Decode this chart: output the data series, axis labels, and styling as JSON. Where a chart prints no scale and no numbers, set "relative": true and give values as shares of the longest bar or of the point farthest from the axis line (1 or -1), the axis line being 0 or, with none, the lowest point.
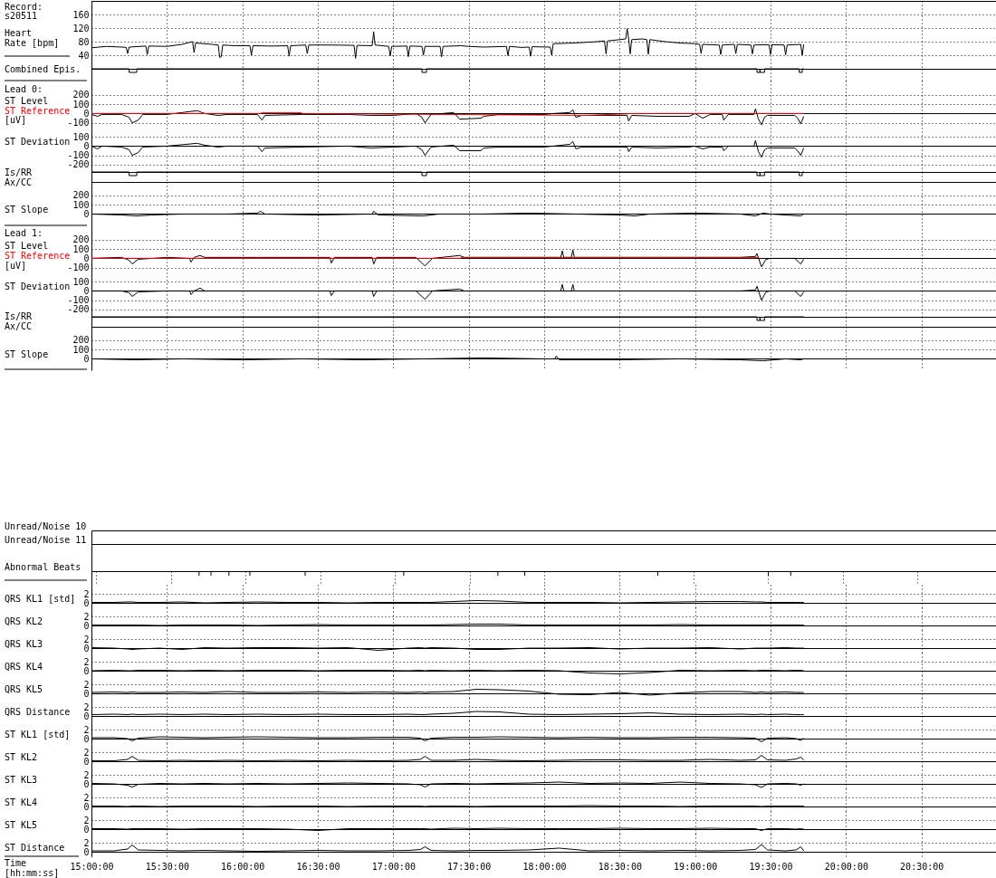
{
  "chart_data": [
    {
      "type": "line",
      "title": "Record: s20511",
      "ylabel": "Heart Rate [bpm]",
      "color": "#000000",
      "x": [
        15,
        15.1,
        15.2,
        15.23,
        15.24,
        15.25,
        15.36,
        15.37,
        15.38,
        15.5,
        15.6,
        15.67,
        15.68,
        15.69,
        15.8,
        15.84,
        15.85,
        15.86,
        15.87,
        15.95,
        16.05,
        16.06,
        16.07,
        16.2,
        16.3,
        16.31,
        16.32,
        16.42,
        16.43,
        16.44,
        16.6,
        16.74,
        16.75,
        16.76,
        16.86,
        16.87,
        16.88,
        16.97,
        16.98,
        16.99,
        17.09,
        17.1,
        17.11,
        17.19,
        17.2,
        17.21,
        17.31,
        17.32,
        17.33,
        17.45,
        17.5,
        17.6,
        17.75,
        17.76,
        17.77,
        17.85,
        17.9,
        17.91,
        17.92,
        18.04,
        18.05,
        18.06,
        18.2,
        18.35,
        18.4,
        18.41,
        18.42,
        18.5,
        18.54,
        18.55,
        18.56,
        18.57,
        18.58,
        18.65,
        18.68,
        18.69,
        18.7,
        18.8,
        18.9,
        19,
        19.03,
        19.04,
        19.05,
        19.16,
        19.17,
        19.18,
        19.26,
        19.27,
        19.28,
        19.37,
        19.38,
        19.39,
        19.49,
        19.5,
        19.51,
        19.59,
        19.6,
        19.61,
        19.7,
        19.71,
        19.72
      ],
      "values": [
        62,
        66,
        64,
        63,
        45,
        64,
        67,
        42,
        67,
        66,
        72,
        80,
        48,
        76,
        72,
        70,
        33,
        36,
        70,
        68,
        68,
        40,
        68,
        67,
        68,
        37,
        68,
        70,
        45,
        70,
        70,
        69,
        31,
        69,
        68,
        109,
        70,
        66,
        38,
        66,
        67,
        36,
        67,
        66,
        40,
        66,
        66,
        35,
        66,
        68,
        66,
        64,
        66,
        39,
        66,
        63,
        64,
        37,
        65,
        64,
        40,
        74,
        76,
        80,
        82,
        44,
        82,
        86,
        88,
        118,
        88,
        44,
        86,
        88,
        86,
        43,
        86,
        80,
        76,
        74,
        72,
        45,
        72,
        70,
        42,
        70,
        72,
        45,
        72,
        70,
        44,
        70,
        71,
        42,
        71,
        70,
        41,
        70,
        72,
        40,
        72
      ],
      "xlim": [
        15,
        21
      ],
      "xticks": [
        15,
        15.5,
        16,
        16.5,
        17,
        17.5,
        18,
        18.5,
        19,
        19.5,
        20,
        20.5
      ],
      "ylim": [
        0,
        200
      ],
      "yticks": [
        40,
        80,
        120,
        160
      ],
      "grid": true,
      "tick_labels": "y"
    },
    {
      "type": "step",
      "ylabel": "Combined Epis.",
      "relative": true,
      "color": "#000000",
      "x": [
        15,
        15.25,
        15.3,
        17.19,
        17.22,
        19.41,
        19.43,
        19.43,
        19.46,
        19.69,
        19.71,
        19.72
      ],
      "values": [
        0,
        -1,
        0,
        -1,
        0,
        -1,
        0,
        -1,
        0,
        -1,
        0,
        0
      ],
      "xlim": [
        15,
        21
      ],
      "xticks": [
        15,
        15.5,
        16,
        16.5,
        17,
        17.5,
        18,
        18.5,
        19,
        19.5,
        20,
        20.5
      ],
      "grid": "x",
      "tick_labels": false
    },
    {
      "type": "line",
      "title": "Lead 0:",
      "ylabel": "[uV]",
      "legend": "left",
      "series": [
        {
          "name": "ST Level",
          "color": "#000000",
          "x": [
            15,
            15.04,
            15.07,
            15.2,
            15.25,
            15.27,
            15.31,
            15.34,
            15.5,
            15.7,
            15.75,
            15.84,
            15.9,
            16.1,
            16.13,
            16.15,
            16.4,
            16.7,
            16.85,
            17,
            17.15,
            17.19,
            17.21,
            17.25,
            17.4,
            17.44,
            17.58,
            17.6,
            17.7,
            18,
            18.06,
            18.17,
            18.19,
            18.21,
            18.25,
            18.55,
            18.56,
            18.58,
            18.75,
            18.96,
            19,
            19.05,
            19.1,
            19.18,
            19.19,
            19.22,
            19.39,
            19.4,
            19.42,
            19.44,
            19.46,
            19.48,
            19.66,
            19.68,
            19.7,
            19.72
          ],
          "values": [
            -10,
            -30,
            -10,
            -10,
            -40,
            -100,
            -70,
            -10,
            -10,
            30,
            0,
            -20,
            -10,
            -10,
            -70,
            -20,
            -10,
            -10,
            -20,
            -20,
            0,
            -40,
            -100,
            -10,
            10,
            -60,
            -50,
            -30,
            -10,
            -10,
            0,
            10,
            40,
            -40,
            -20,
            -20,
            -80,
            -20,
            -30,
            -30,
            0,
            -50,
            -10,
            -10,
            -70,
            -10,
            -10,
            50,
            -60,
            -120,
            -40,
            -20,
            -20,
            -50,
            -110,
            -30
          ]
        },
        {
          "name": "ST Reference",
          "color": "#ff0000",
          "x": [
            15,
            16.12,
            16.13,
            16.38,
            16.4,
            18.27,
            18.6,
            19.72
          ],
          "values": [
            0,
            0,
            10,
            10,
            0,
            -20,
            0,
            0
          ]
        }
      ],
      "xlim": [
        15,
        21
      ],
      "xticks": [
        15,
        15.5,
        16,
        16.5,
        17,
        17.5,
        18,
        18.5,
        19,
        19.5,
        20,
        20.5
      ],
      "ylim": [
        -150,
        350
      ],
      "yticks": [
        -100,
        0,
        100,
        200
      ],
      "grid": true,
      "tick_labels": "y"
    },
    {
      "type": "line",
      "ylabel": "ST Deviation",
      "color": "#000000",
      "x": [
        15,
        15.04,
        15.07,
        15.2,
        15.25,
        15.27,
        15.31,
        15.34,
        15.5,
        15.7,
        15.75,
        15.84,
        15.9,
        16.1,
        16.13,
        16.15,
        16.4,
        16.7,
        16.85,
        17,
        17.15,
        17.19,
        17.21,
        17.25,
        17.4,
        17.44,
        17.58,
        17.6,
        17.7,
        18,
        18.06,
        18.17,
        18.19,
        18.21,
        18.25,
        18.55,
        18.56,
        18.58,
        18.75,
        18.96,
        19,
        19.05,
        19.1,
        19.18,
        19.19,
        19.22,
        19.39,
        19.4,
        19.42,
        19.44,
        19.46,
        19.48,
        19.66,
        19.68,
        19.7,
        19.72
      ],
      "values": [
        0,
        -30,
        0,
        -10,
        -40,
        -100,
        -70,
        -10,
        0,
        30,
        10,
        -10,
        0,
        0,
        -60,
        -20,
        -10,
        0,
        -20,
        -10,
        0,
        -40,
        -100,
        -10,
        10,
        -50,
        -50,
        -20,
        -10,
        -10,
        0,
        20,
        50,
        -30,
        -10,
        -10,
        -60,
        -10,
        -20,
        -10,
        0,
        -30,
        -10,
        -10,
        -50,
        0,
        0,
        60,
        -60,
        -120,
        -40,
        -20,
        -20,
        -50,
        -100,
        -20
      ],
      "xlim": [
        15,
        21
      ],
      "xticks": [
        15,
        15.5,
        16,
        16.5,
        17,
        17.5,
        18,
        18.5,
        19,
        19.5,
        20,
        20.5
      ],
      "ylim": [
        -280,
        200
      ],
      "yticks": [
        -200,
        -100,
        0,
        100
      ],
      "grid": true,
      "tick_labels": "y"
    },
    {
      "type": "step",
      "ylabel": "Is/RR Ax/CC",
      "relative": true,
      "color": "#000000",
      "x": [
        15,
        15.25,
        15.3,
        17.19,
        17.22,
        19.41,
        19.43,
        19.43,
        19.46,
        19.69,
        19.71,
        19.72
      ],
      "values": [
        0,
        -1,
        0,
        -1,
        0,
        -1,
        0,
        -1,
        0,
        -1,
        0,
        0
      ],
      "xlim": [
        15,
        21
      ],
      "xticks": [
        15,
        15.5,
        16,
        16.5,
        17,
        17.5,
        18,
        18.5,
        19,
        19.5,
        20,
        20.5
      ],
      "grid": "x",
      "tick_labels": false
    },
    {
      "type": "line",
      "ylabel": "ST Slope",
      "color": "#000000",
      "x": [
        15,
        15.2,
        15.3,
        15.4,
        15.6,
        15.9,
        16.1,
        16.12,
        16.15,
        16.5,
        16.86,
        16.87,
        16.9,
        17.2,
        17.3,
        17.6,
        17.9,
        18.2,
        18.5,
        18.6,
        18.7,
        19,
        19.3,
        19.4,
        19.45,
        19.5,
        19.7,
        19.72
      ],
      "values": [
        0,
        -10,
        -20,
        -10,
        0,
        0,
        10,
        30,
        0,
        -10,
        0,
        30,
        -10,
        -20,
        0,
        0,
        10,
        0,
        -10,
        -20,
        0,
        10,
        0,
        -20,
        10,
        0,
        -20,
        0
      ],
      "xlim": [
        15,
        21
      ],
      "xticks": [
        15,
        15.5,
        16,
        16.5,
        17,
        17.5,
        18,
        18.5,
        19,
        19.5,
        20,
        20.5
      ],
      "ylim": [
        -120,
        340
      ],
      "yticks": [
        0,
        100,
        200
      ],
      "grid": true,
      "tick_labels": "y"
    },
    {
      "type": "line",
      "title": "Lead 1:",
      "ylabel": "[uV]",
      "legend": "left",
      "series": [
        {
          "name": "ST Level",
          "color": "#000000",
          "x": [
            15,
            15.2,
            15.25,
            15.27,
            15.31,
            15.5,
            15.65,
            15.66,
            15.68,
            15.72,
            15.75,
            16.1,
            16.58,
            16.59,
            16.61,
            16.86,
            16.87,
            16.89,
            17.15,
            17.21,
            17.26,
            17.44,
            17.47,
            17.8,
            18.1,
            18.11,
            18.12,
            18.13,
            18.18,
            18.19,
            18.2,
            18.6,
            19,
            19.2,
            19.3,
            19.4,
            19.41,
            19.44,
            19.47,
            19.5,
            19.66,
            19.7,
            19.72
          ],
          "values": [
            0,
            10,
            -20,
            -60,
            -10,
            10,
            0,
            -40,
            10,
            30,
            10,
            10,
            10,
            -50,
            10,
            10,
            -60,
            10,
            10,
            -80,
            0,
            30,
            10,
            10,
            10,
            10,
            80,
            10,
            10,
            90,
            10,
            10,
            10,
            10,
            10,
            20,
            50,
            -90,
            -10,
            0,
            0,
            -60,
            -10
          ]
        },
        {
          "name": "ST Reference",
          "color": "#ff0000",
          "x": [
            15,
            17.44,
            17.46,
            19.42
          ],
          "values": [
            0,
            0,
            10,
            10
          ]
        }
      ],
      "xlim": [
        15,
        21
      ],
      "xticks": [
        15,
        15.5,
        16,
        16.5,
        17,
        17.5,
        18,
        18.5,
        19,
        19.5,
        20,
        20.5
      ],
      "ylim": [
        -150,
        350
      ],
      "yticks": [
        -100,
        0,
        100,
        200
      ],
      "grid": true,
      "tick_labels": "y"
    },
    {
      "type": "line",
      "ylabel": "ST Deviation",
      "color": "#000000",
      "x": [
        15,
        15.2,
        15.25,
        15.27,
        15.31,
        15.5,
        15.65,
        15.66,
        15.68,
        15.72,
        15.75,
        16.1,
        16.58,
        16.59,
        16.61,
        16.86,
        16.87,
        16.89,
        17.15,
        17.21,
        17.26,
        17.44,
        17.47,
        17.8,
        18.1,
        18.11,
        18.12,
        18.13,
        18.18,
        18.19,
        18.2,
        18.6,
        19,
        19.2,
        19.3,
        19.4,
        19.41,
        19.44,
        19.47,
        19.5,
        19.66,
        19.7,
        19.72
      ],
      "values": [
        0,
        0,
        -20,
        -60,
        -10,
        0,
        0,
        -40,
        0,
        30,
        0,
        0,
        0,
        -50,
        0,
        0,
        -60,
        0,
        0,
        -90,
        0,
        20,
        0,
        0,
        0,
        0,
        70,
        0,
        0,
        70,
        0,
        0,
        0,
        0,
        0,
        10,
        50,
        -100,
        -10,
        0,
        0,
        -60,
        -10
      ],
      "xlim": [
        15,
        21
      ],
      "xticks": [
        15,
        15.5,
        16,
        16.5,
        17,
        17.5,
        18,
        18.5,
        19,
        19.5,
        20,
        20.5
      ],
      "ylim": [
        -280,
        200
      ],
      "yticks": [
        -200,
        -100,
        0,
        100
      ],
      "grid": true,
      "tick_labels": "y"
    },
    {
      "type": "step",
      "ylabel": "Is/RR Ax/CC",
      "relative": true,
      "color": "#000000",
      "x": [
        15,
        19.41,
        19.43,
        19.43,
        19.46,
        19.72
      ],
      "values": [
        0,
        -1,
        0,
        -1,
        0,
        0
      ],
      "xlim": [
        15,
        21
      ],
      "xticks": [
        15,
        15.5,
        16,
        16.5,
        17,
        17.5,
        18,
        18.5,
        19,
        19.5,
        20,
        20.5
      ],
      "grid": "x",
      "tick_labels": false
    },
    {
      "type": "line",
      "ylabel": "ST Slope",
      "color": "#000000",
      "x": [
        15,
        15.3,
        15.6,
        16,
        16.4,
        16.8,
        17.2,
        17.6,
        18,
        18.07,
        18.08,
        18.1,
        18.5,
        18.9,
        19.3,
        19.45,
        19.6,
        19.7,
        19.72
      ],
      "values": [
        0,
        -10,
        0,
        -10,
        0,
        -10,
        0,
        10,
        0,
        0,
        30,
        -10,
        -10,
        0,
        -10,
        -20,
        0,
        -10,
        0
      ],
      "xlim": [
        15,
        21
      ],
      "xticks": [
        15,
        15.5,
        16,
        16.5,
        17,
        17.5,
        18,
        18.5,
        19,
        19.5,
        20,
        20.5
      ],
      "ylim": [
        -120,
        340
      ],
      "yticks": [
        0,
        100,
        200
      ],
      "grid": true,
      "tick_labels": "y"
    },
    {
      "type": "other",
      "ylabel": "Unread/Noise 10"
    },
    {
      "type": "other",
      "ylabel": "Unread/Noise 11"
    },
    {
      "type": "bar",
      "ylabel": "Abnormal Beats",
      "relative": true,
      "color": "#000000",
      "x": [
        15.69,
        15.77,
        15.89,
        16.03,
        16.4,
        17.06,
        17.69,
        17.87,
        18.76,
        19.5,
        19.65
      ],
      "values": [
        -1,
        -1,
        -1,
        -1,
        -1,
        -1,
        -1,
        -1,
        -1,
        -1,
        -1
      ],
      "xlim": [
        15,
        21
      ],
      "xticks": [
        15,
        15.5,
        16,
        16.5,
        17,
        17.5,
        18,
        18.5,
        19,
        19.5,
        20,
        20.5
      ],
      "grid": "x",
      "tick_labels": false
    },
    {
      "type": "line",
      "ylabel": "QRS KL1 [std]",
      "color": "#000000",
      "x": [
        15,
        15.15,
        15.24,
        15.27,
        15.31,
        15.45,
        15.6,
        15.75,
        15.9,
        16.1,
        16.3,
        16.5,
        16.7,
        16.9,
        17.1,
        17.18,
        17.21,
        17.25,
        17.4,
        17.55,
        17.7,
        17.9,
        18.1,
        18.3,
        18.5,
        18.7,
        18.9,
        19.1,
        19.3,
        19.4,
        19.44,
        19.48,
        19.6,
        19.67,
        19.7,
        19.72
      ],
      "values": [
        0.1,
        0.1,
        0.2,
        0.2,
        0.1,
        0.1,
        0.2,
        0.0,
        0.1,
        0.2,
        0.1,
        0.1,
        0.0,
        0.1,
        0.1,
        0.1,
        0.1,
        0.1,
        0.3,
        0.5,
        0.4,
        0.1,
        0.1,
        0.1,
        0.0,
        0.1,
        0.2,
        0.3,
        0.3,
        0.2,
        0.2,
        0.1,
        0.1,
        0.1,
        0.1,
        0.1
      ],
      "xlim": [
        15,
        21
      ],
      "xticks": [
        15,
        15.5,
        16,
        16.5,
        17,
        17.5,
        18,
        18.5,
        19,
        19.5,
        20,
        20.5
      ],
      "ylim": [
        -1,
        4
      ],
      "yticks": [
        0,
        2
      ],
      "grid": true,
      "tick_labels": "y"
    },
    {
      "type": "line",
      "ylabel": "QRS KL2",
      "color": "#000000",
      "x": [
        15,
        15.15,
        15.24,
        15.27,
        15.31,
        15.45,
        15.6,
        15.75,
        15.9,
        16.1,
        16.3,
        16.5,
        16.7,
        16.9,
        17.1,
        17.18,
        17.21,
        17.25,
        17.4,
        17.55,
        17.7,
        17.9,
        18.1,
        18.3,
        18.5,
        18.7,
        18.9,
        19.1,
        19.3,
        19.4,
        19.44,
        19.48,
        19.6,
        19.67,
        19.7,
        19.72
      ],
      "values": [
        0.1,
        0.1,
        0.1,
        0.1,
        0.1,
        0.0,
        0.1,
        0.1,
        0.1,
        0.0,
        0.1,
        0.2,
        0.1,
        0.1,
        0.1,
        0.1,
        0.1,
        0.1,
        0.2,
        0.3,
        0.3,
        0.1,
        0.1,
        0.1,
        0.1,
        0.1,
        0.2,
        0.1,
        0.1,
        0.1,
        0.1,
        0.1,
        0.1,
        0.1,
        0.1,
        0.1
      ],
      "xlim": [
        15,
        21
      ],
      "xticks": [
        15,
        15.5,
        16,
        16.5,
        17,
        17.5,
        18,
        18.5,
        19,
        19.5,
        20,
        20.5
      ],
      "ylim": [
        -1,
        4
      ],
      "yticks": [
        0,
        2
      ],
      "grid": true,
      "tick_labels": "y"
    },
    {
      "type": "line",
      "ylabel": "QRS KL3",
      "color": "#000000",
      "x": [
        15,
        15.15,
        15.24,
        15.27,
        15.31,
        15.45,
        15.6,
        15.75,
        15.9,
        16.1,
        16.3,
        16.5,
        16.7,
        16.9,
        17.1,
        17.18,
        17.21,
        17.25,
        17.4,
        17.55,
        17.7,
        17.9,
        18.1,
        18.3,
        18.5,
        18.7,
        18.9,
        19.1,
        19.3,
        19.4,
        19.44,
        19.48,
        19.6,
        19.67,
        19.7,
        19.72
      ],
      "values": [
        0.1,
        0.0,
        -0.2,
        -0.3,
        -0.2,
        0.0,
        -0.3,
        0.1,
        0.0,
        0.1,
        0.1,
        0.0,
        0.1,
        -0.5,
        0.0,
        0.1,
        0.0,
        0.1,
        0.0,
        -0.3,
        -0.3,
        0.0,
        0.0,
        0.1,
        -0.2,
        0.0,
        0.0,
        0.1,
        -0.2,
        0.0,
        0.0,
        0.0,
        0.1,
        0.0,
        0.0,
        0.0
      ],
      "xlim": [
        15,
        21
      ],
      "xticks": [
        15,
        15.5,
        16,
        16.5,
        17,
        17.5,
        18,
        18.5,
        19,
        19.5,
        20,
        20.5
      ],
      "ylim": [
        -1,
        4
      ],
      "yticks": [
        0,
        2
      ],
      "grid": true,
      "tick_labels": "y"
    },
    {
      "type": "line",
      "ylabel": "QRS KL4",
      "color": "#000000",
      "x": [
        15,
        15.15,
        15.24,
        15.27,
        15.31,
        15.45,
        15.6,
        15.75,
        15.9,
        16.1,
        16.3,
        16.5,
        16.7,
        16.9,
        17.1,
        17.18,
        17.21,
        17.25,
        17.4,
        17.55,
        17.7,
        17.9,
        18.1,
        18.3,
        18.5,
        18.7,
        18.9,
        19.1,
        19.3,
        19.4,
        19.44,
        19.48,
        19.6,
        19.67,
        19.7,
        19.72
      ],
      "values": [
        0.0,
        0.1,
        0.0,
        0.0,
        0.1,
        0.1,
        0.0,
        0.1,
        0.0,
        0.1,
        0.1,
        0.0,
        0.1,
        0.1,
        0.0,
        0.1,
        0.0,
        0.1,
        0.0,
        0.1,
        0.0,
        0.1,
        0.0,
        -0.5,
        -0.7,
        -0.4,
        0.1,
        0.0,
        0.1,
        0.0,
        0.1,
        0.1,
        0.0,
        0.1,
        0.1,
        0.0
      ],
      "xlim": [
        15,
        21
      ],
      "xticks": [
        15,
        15.5,
        16,
        16.5,
        17,
        17.5,
        18,
        18.5,
        19,
        19.5,
        20,
        20.5
      ],
      "ylim": [
        -1,
        4
      ],
      "yticks": [
        0,
        2
      ],
      "grid": true,
      "tick_labels": "y"
    },
    {
      "type": "line",
      "ylabel": "QRS KL5",
      "color": "#000000",
      "x": [
        15,
        15.15,
        15.24,
        15.27,
        15.31,
        15.45,
        15.6,
        15.75,
        15.9,
        16.1,
        16.3,
        16.5,
        16.7,
        16.9,
        17.1,
        17.18,
        17.21,
        17.25,
        17.4,
        17.55,
        17.7,
        17.9,
        18.1,
        18.3,
        18.5,
        18.7,
        18.9,
        19.1,
        19.3,
        19.4,
        19.44,
        19.48,
        19.6,
        19.67,
        19.7,
        19.72
      ],
      "values": [
        0.2,
        0.3,
        0.2,
        0.3,
        0.2,
        0.2,
        0.3,
        0.2,
        0.4,
        0.2,
        0.2,
        0.3,
        0.2,
        0.3,
        0.2,
        0.3,
        0.2,
        0.3,
        0.4,
        0.9,
        0.8,
        0.5,
        -0.2,
        -0.3,
        0.2,
        -0.4,
        0.1,
        0.4,
        0.4,
        0.2,
        0.3,
        0.2,
        0.3,
        0.2,
        0.2,
        0.2
      ],
      "xlim": [
        15,
        21
      ],
      "xticks": [
        15,
        15.5,
        16,
        16.5,
        17,
        17.5,
        18,
        18.5,
        19,
        19.5,
        20,
        20.5
      ],
      "ylim": [
        -1,
        4
      ],
      "yticks": [
        0,
        2
      ],
      "grid": true,
      "tick_labels": "y"
    },
    {
      "type": "line",
      "ylabel": "QRS Distance",
      "color": "#000000",
      "x": [
        15,
        15.15,
        15.24,
        15.27,
        15.31,
        15.45,
        15.6,
        15.75,
        15.9,
        16.1,
        16.3,
        16.5,
        16.7,
        16.9,
        17.1,
        17.18,
        17.21,
        17.25,
        17.4,
        17.55,
        17.7,
        17.9,
        18.1,
        18.3,
        18.5,
        18.7,
        18.9,
        19.1,
        19.3,
        19.4,
        19.44,
        19.48,
        19.6,
        19.67,
        19.7,
        19.72
      ],
      "values": [
        0.3,
        0.4,
        0.3,
        0.4,
        0.3,
        0.4,
        0.3,
        0.4,
        0.3,
        0.4,
        0.3,
        0.4,
        0.3,
        0.3,
        0.4,
        0.3,
        0.3,
        0.4,
        0.6,
        1.0,
        0.9,
        0.4,
        0.3,
        0.4,
        0.5,
        0.7,
        0.4,
        0.3,
        0.4,
        0.3,
        0.4,
        0.3,
        0.4,
        0.3,
        0.3,
        0.3
      ],
      "xlim": [
        15,
        21
      ],
      "xticks": [
        15,
        15.5,
        16,
        16.5,
        17,
        17.5,
        18,
        18.5,
        19,
        19.5,
        20,
        20.5
      ],
      "ylim": [
        -1,
        4
      ],
      "yticks": [
        0,
        2
      ],
      "grid": true,
      "tick_labels": "y"
    },
    {
      "type": "line",
      "ylabel": "ST KL1 [std]",
      "color": "#000000",
      "x": [
        15,
        15.15,
        15.24,
        15.27,
        15.31,
        15.45,
        15.6,
        15.75,
        15.9,
        16.1,
        16.3,
        16.5,
        16.7,
        16.9,
        17.1,
        17.18,
        17.21,
        17.25,
        17.4,
        17.55,
        17.7,
        17.9,
        18.1,
        18.3,
        18.5,
        18.7,
        18.9,
        19.1,
        19.3,
        19.4,
        19.44,
        19.48,
        19.6,
        19.67,
        19.7,
        19.72
      ],
      "values": [
        0.2,
        0.2,
        0.0,
        -0.5,
        0.1,
        0.4,
        0.3,
        0.2,
        0.3,
        0.4,
        0.3,
        0.2,
        0.2,
        0.3,
        0.3,
        0.1,
        -0.5,
        0.1,
        0.3,
        0.3,
        0.4,
        0.3,
        0.2,
        0.3,
        0.2,
        0.2,
        0.3,
        0.3,
        0.2,
        0.1,
        -0.7,
        0.1,
        0.2,
        0.0,
        -0.4,
        0.1
      ],
      "xlim": [
        15,
        21
      ],
      "xticks": [
        15,
        15.5,
        16,
        16.5,
        17,
        17.5,
        18,
        18.5,
        19,
        19.5,
        20,
        20.5
      ],
      "ylim": [
        -1,
        4
      ],
      "yticks": [
        0,
        2
      ],
      "grid": true,
      "tick_labels": "y"
    },
    {
      "type": "line",
      "ylabel": "ST KL2",
      "color": "#000000",
      "x": [
        15,
        15.15,
        15.24,
        15.27,
        15.31,
        15.45,
        15.6,
        15.75,
        15.9,
        16.1,
        16.3,
        16.5,
        16.7,
        16.9,
        17.1,
        17.18,
        17.21,
        17.25,
        17.4,
        17.55,
        17.7,
        17.9,
        18.1,
        18.3,
        18.5,
        18.7,
        18.9,
        19.1,
        19.3,
        19.4,
        19.44,
        19.48,
        19.6,
        19.67,
        19.7,
        19.72
      ],
      "values": [
        0.1,
        0.1,
        0.4,
        1.1,
        0.2,
        0.1,
        0.2,
        0.1,
        0.2,
        0.1,
        0.2,
        0.1,
        0.2,
        0.1,
        0.2,
        0.4,
        1.1,
        0.2,
        0.2,
        0.4,
        0.2,
        0.1,
        0.2,
        0.3,
        0.3,
        0.2,
        0.2,
        0.4,
        0.2,
        0.3,
        1.3,
        0.3,
        0.2,
        0.5,
        0.9,
        0.3
      ],
      "xlim": [
        15,
        21
      ],
      "xticks": [
        15,
        15.5,
        16,
        16.5,
        17,
        17.5,
        18,
        18.5,
        19,
        19.5,
        20,
        20.5
      ],
      "ylim": [
        -1,
        4
      ],
      "yticks": [
        0,
        2
      ],
      "grid": true,
      "tick_labels": "y"
    },
    {
      "type": "line",
      "ylabel": "ST KL3",
      "color": "#000000",
      "x": [
        15,
        15.15,
        15.24,
        15.27,
        15.31,
        15.45,
        15.6,
        15.75,
        15.9,
        16.1,
        16.3,
        16.5,
        16.7,
        16.9,
        17.1,
        17.18,
        17.21,
        17.25,
        17.4,
        17.55,
        17.7,
        17.9,
        18.1,
        18.3,
        18.5,
        18.7,
        18.9,
        19.1,
        19.3,
        19.4,
        19.44,
        19.48,
        19.6,
        19.67,
        19.7,
        19.72
      ],
      "values": [
        0.1,
        0.0,
        -0.3,
        -0.7,
        -0.1,
        0.1,
        0.0,
        0.1,
        0.0,
        0.1,
        0.0,
        0.1,
        0.2,
        0.1,
        0.0,
        -0.2,
        -0.7,
        0.0,
        0.1,
        0.0,
        0.1,
        0.2,
        0.4,
        0.1,
        0.2,
        0.1,
        0.4,
        0.1,
        0.0,
        -0.2,
        -0.8,
        0.0,
        0.1,
        0.0,
        -0.3,
        0.0
      ],
      "xlim": [
        15,
        21
      ],
      "xticks": [
        15,
        15.5,
        16,
        16.5,
        17,
        17.5,
        18,
        18.5,
        19,
        19.5,
        20,
        20.5
      ],
      "ylim": [
        -1,
        4
      ],
      "yticks": [
        0,
        2
      ],
      "grid": true,
      "tick_labels": "y"
    },
    {
      "type": "line",
      "ylabel": "ST KL4",
      "color": "#000000",
      "x": [
        15,
        15.15,
        15.24,
        15.27,
        15.31,
        15.45,
        15.6,
        15.75,
        15.9,
        16.1,
        16.3,
        16.5,
        16.7,
        16.9,
        17.1,
        17.18,
        17.21,
        17.25,
        17.4,
        17.55,
        17.7,
        17.9,
        18.1,
        18.3,
        18.5,
        18.7,
        18.9,
        19.1,
        19.3,
        19.4,
        19.44,
        19.48,
        19.6,
        19.67,
        19.7,
        19.72
      ],
      "values": [
        0.1,
        0.1,
        0.0,
        0.1,
        0.1,
        0.0,
        0.1,
        0.1,
        0.1,
        0.0,
        0.1,
        0.1,
        0.0,
        0.1,
        0.1,
        0.1,
        0.0,
        0.1,
        0.1,
        0.0,
        0.1,
        0.1,
        0.1,
        0.2,
        0.1,
        0.1,
        0.0,
        0.1,
        0.1,
        0.1,
        0.0,
        0.1,
        0.1,
        0.1,
        0.1,
        0.1
      ],
      "xlim": [
        15,
        21
      ],
      "xticks": [
        15,
        15.5,
        16,
        16.5,
        17,
        17.5,
        18,
        18.5,
        19,
        19.5,
        20,
        20.5
      ],
      "ylim": [
        -1,
        4
      ],
      "yticks": [
        0,
        2
      ],
      "grid": true,
      "tick_labels": "y"
    },
    {
      "type": "line",
      "ylabel": "ST KL5",
      "color": "#000000",
      "x": [
        15,
        15.15,
        15.24,
        15.27,
        15.31,
        15.45,
        15.6,
        15.75,
        15.9,
        16.1,
        16.3,
        16.5,
        16.7,
        16.9,
        17.1,
        17.18,
        17.21,
        17.25,
        17.4,
        17.55,
        17.7,
        17.9,
        18.1,
        18.3,
        18.5,
        18.7,
        18.9,
        19.1,
        19.3,
        19.4,
        19.44,
        19.48,
        19.6,
        19.67,
        19.7,
        19.72
      ],
      "values": [
        0.1,
        0.1,
        0.0,
        0.1,
        0.1,
        0.1,
        0.0,
        0.1,
        0.1,
        0.1,
        0.0,
        -0.3,
        0.1,
        0.1,
        0.1,
        0.1,
        0.1,
        0.0,
        0.2,
        0.1,
        0.2,
        0.1,
        0.1,
        0.1,
        0.2,
        0.1,
        0.1,
        0.2,
        0.1,
        0.1,
        -0.3,
        0.1,
        0.1,
        0.0,
        0.1,
        0.0
      ],
      "xlim": [
        15,
        21
      ],
      "xticks": [
        15,
        15.5,
        16,
        16.5,
        17,
        17.5,
        18,
        18.5,
        19,
        19.5,
        20,
        20.5
      ],
      "ylim": [
        -1,
        4
      ],
      "yticks": [
        0,
        2
      ],
      "grid": true,
      "tick_labels": "y"
    },
    {
      "type": "line",
      "ylabel": "ST Distance",
      "xlabel": "Time [hh:mm:ss]",
      "color": "#000000",
      "x": [
        15,
        15.15,
        15.24,
        15.27,
        15.31,
        15.45,
        15.6,
        15.75,
        15.9,
        16.1,
        16.3,
        16.5,
        16.7,
        16.9,
        17.1,
        17.18,
        17.21,
        17.25,
        17.4,
        17.55,
        17.7,
        17.9,
        18.1,
        18.3,
        18.5,
        18.7,
        18.9,
        19.1,
        19.3,
        19.4,
        19.44,
        19.48,
        19.6,
        19.67,
        19.7,
        19.72
      ],
      "values": [
        0.2,
        0.2,
        0.6,
        1.5,
        0.4,
        0.3,
        0.2,
        0.3,
        0.2,
        0.1,
        0.2,
        0.3,
        0.2,
        0.2,
        0.3,
        0.5,
        1.1,
        0.3,
        0.2,
        0.3,
        0.3,
        0.4,
        0.8,
        0.2,
        0.3,
        0.2,
        0.3,
        0.2,
        0.3,
        0.5,
        1.6,
        0.4,
        0.2,
        0.4,
        1.1,
        0.2
      ],
      "xlim": [
        15,
        21
      ],
      "xticks": [
        {
          "value": 15,
          "label": "15:00:00"
        },
        {
          "value": 15.5,
          "label": "15:30:00"
        },
        {
          "value": 16,
          "label": "16:00:00"
        },
        {
          "value": 16.5,
          "label": "16:30:00"
        },
        {
          "value": 17,
          "label": "17:00:00"
        },
        {
          "value": 17.5,
          "label": "17:30:00"
        },
        {
          "value": 18,
          "label": "18:00:00"
        },
        {
          "value": 18.5,
          "label": "18:30:00"
        },
        {
          "value": 19,
          "label": "19:00:00"
        },
        {
          "value": 19.5,
          "label": "19:30:00"
        },
        {
          "value": 20,
          "label": "20:00:00"
        },
        {
          "value": 20.5,
          "label": "20:30:00"
        }
      ],
      "ylim": [
        -1,
        4
      ],
      "yticks": [
        0,
        2
      ],
      "grid": true
    }
  ]
}
